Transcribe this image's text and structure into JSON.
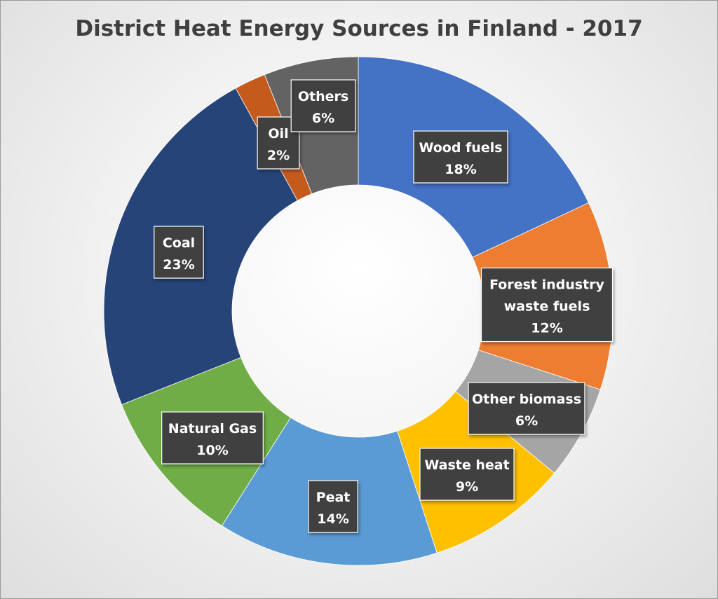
{
  "chart_data": {
    "type": "pie",
    "subtype": "donut",
    "title": "District Heat Energy Sources in Finland - 2017",
    "categories": [
      "Wood fuels",
      "Forest industry waste fuels",
      "Other biomass",
      "Waste heat",
      "Peat",
      "Natural Gas",
      "Coal",
      "Oil",
      "Others"
    ],
    "values": [
      18,
      12,
      6,
      9,
      14,
      10,
      23,
      2,
      6
    ],
    "unit": "%",
    "label_lines": [
      [
        "Wood fuels",
        "18%"
      ],
      [
        "Forest industry",
        "waste fuels",
        "12%"
      ],
      [
        "Other biomass",
        "6%"
      ],
      [
        "Waste heat",
        "9%"
      ],
      [
        "Peat",
        "14%"
      ],
      [
        "Natural Gas",
        "10%"
      ],
      [
        "Coal",
        "23%"
      ],
      [
        "Oil",
        "2%"
      ],
      [
        "Others",
        "6%"
      ]
    ],
    "colors": [
      "#4472C4",
      "#ED7D31",
      "#A5A5A5",
      "#FFC000",
      "#5B9BD5",
      "#70AD47",
      "#264478",
      "#C55A1D",
      "#636363"
    ],
    "legend": "none"
  }
}
